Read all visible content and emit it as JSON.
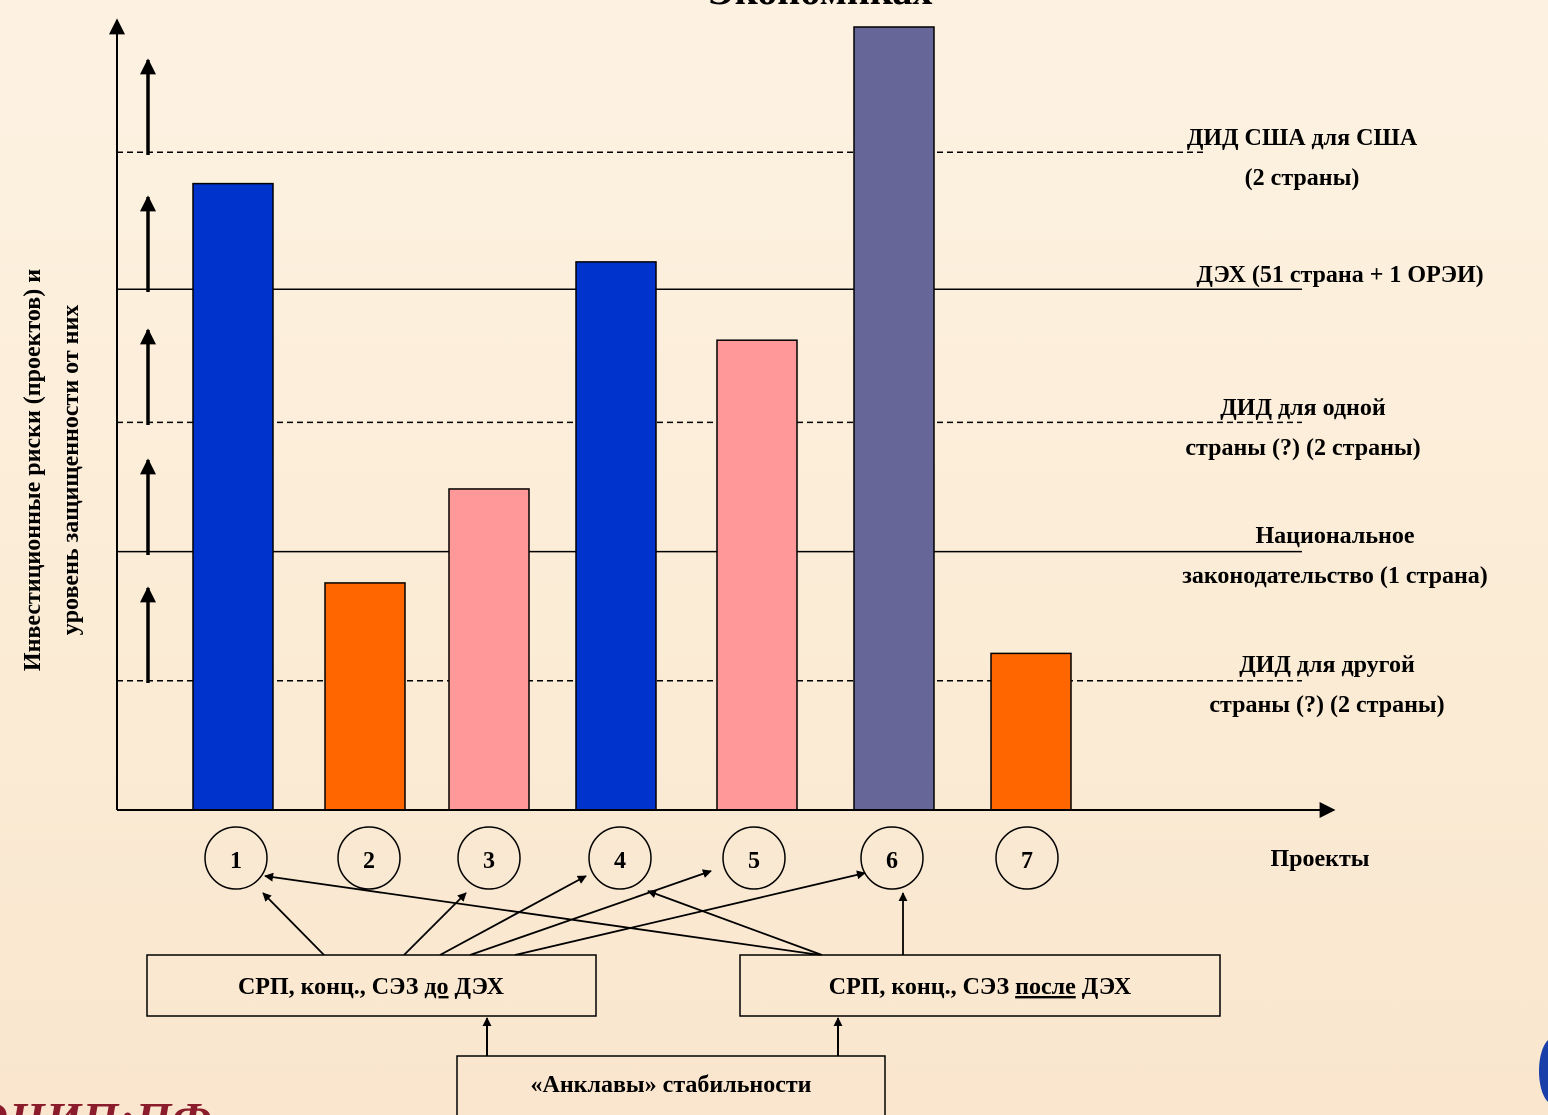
{
  "title": "Экономиках",
  "y_axis_label_line1": "Инвестиционные риски (проектов) и",
  "y_axis_label_line2": "уровень защищенности от них",
  "x_axis_label": "Проекты",
  "projects": [
    {
      "label": "1",
      "risk": 0.8,
      "color": "#0033cc"
    },
    {
      "label": "2",
      "risk": 0.29,
      "color": "#ff6600"
    },
    {
      "label": "3",
      "risk": 0.41,
      "color": "#ff9999"
    },
    {
      "label": "4",
      "risk": 0.7,
      "color": "#0033cc"
    },
    {
      "label": "5",
      "risk": 0.6,
      "color": "#ff9999"
    },
    {
      "label": "6",
      "risk": 1.0,
      "color": "#666699"
    },
    {
      "label": "7",
      "risk": 0.2,
      "color": "#ff6600"
    }
  ],
  "levels": [
    {
      "id": "did-other",
      "lines": [
        "ДИД для другой",
        "страны (?)  (2 страны)"
      ],
      "value": 0.165,
      "style": "dashed"
    },
    {
      "id": "national",
      "lines": [
        "Национальное",
        "законодательство  (1 страна)"
      ],
      "value": 0.33,
      "style": "solid"
    },
    {
      "id": "did-one",
      "lines": [
        "ДИД для одной",
        "страны (?)  (2 страны)"
      ],
      "value": 0.495,
      "style": "dashed"
    },
    {
      "id": "ect",
      "lines": [
        "ДЭХ (51 страна + 1 ОРЭИ)"
      ],
      "value": 0.665,
      "style": "solid"
    },
    {
      "id": "did-usa",
      "lines": [
        "ДИД США для США",
        "(2 страны)"
      ],
      "value": 0.84,
      "style": "dashed"
    }
  ],
  "box_before": {
    "pre": "СРП, конц., СЭЗ ",
    "underlined": "до",
    "post": " ДЭХ",
    "targets": [
      "1",
      "3",
      "4",
      "5",
      "6"
    ]
  },
  "box_after": {
    "pre": "СРП, конц., СЭЗ ",
    "underlined": "после",
    "post": " ДЭХ",
    "targets": [
      "1",
      "4",
      "6"
    ]
  },
  "box_enclaves": "«Анклавы» стабильности",
  "brand": "ЭНИП:ПФ"
}
